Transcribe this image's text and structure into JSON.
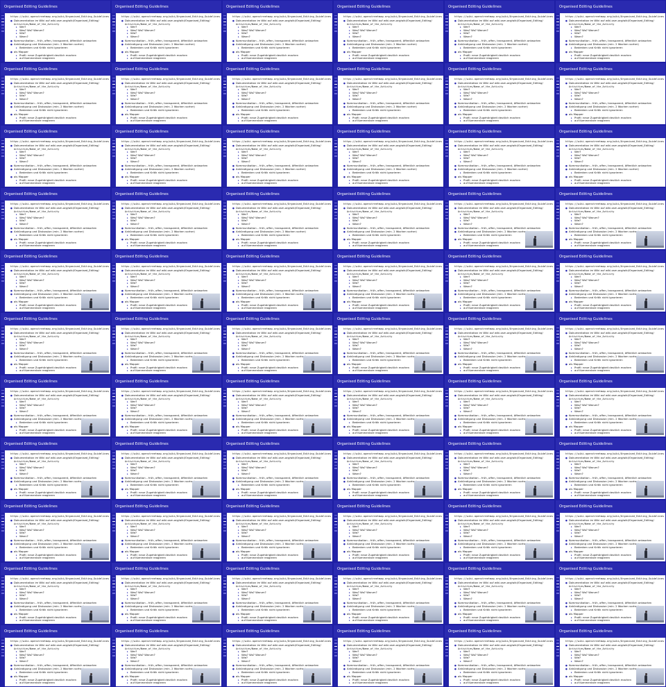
{
  "slide": {
    "title": "Organised Editing Guidelines",
    "url": "https://wiki.openstreetmap.org/wiki/Organised_Editing_Guidelines",
    "bullets": [
      {
        "level": 1,
        "text": "Dokumentation im Wiki auf wiki.osm.org/wiki/Organised_Editing/"
      },
      {
        "level": 0,
        "text": "Activities/Name_of_the_Activity"
      },
      {
        "level": 2,
        "text": "Wer?"
      },
      {
        "level": 2,
        "text": "Was? Wo? Warum?"
      },
      {
        "level": 2,
        "text": "Wie?"
      },
      {
        "level": 2,
        "text": "Wann?"
      },
      {
        "level": 1,
        "text": "Kommunikation – früh, offen, transparent, öffentlich antworten"
      },
      {
        "level": 1,
        "text": "Ankündigung und Diskussion (min. 2 Wochen vorher)"
      },
      {
        "level": 2,
        "text": "Bedenken und Kritik nicht ignorieren"
      },
      {
        "level": 1,
        "text": "als Mapper"
      },
      {
        "level": 2,
        "text": "Profil: neue Zugehörigkeit deutlich machen"
      },
      {
        "level": 2,
        "text": "auf Kommentare reagieren"
      }
    ]
  },
  "grid": {
    "columns": 6,
    "rows": 11
  },
  "video_from_frame": 23,
  "colors": {
    "background": "#1e1ea4",
    "titlebar": "#2a2ab0",
    "content": "#ffffff"
  }
}
